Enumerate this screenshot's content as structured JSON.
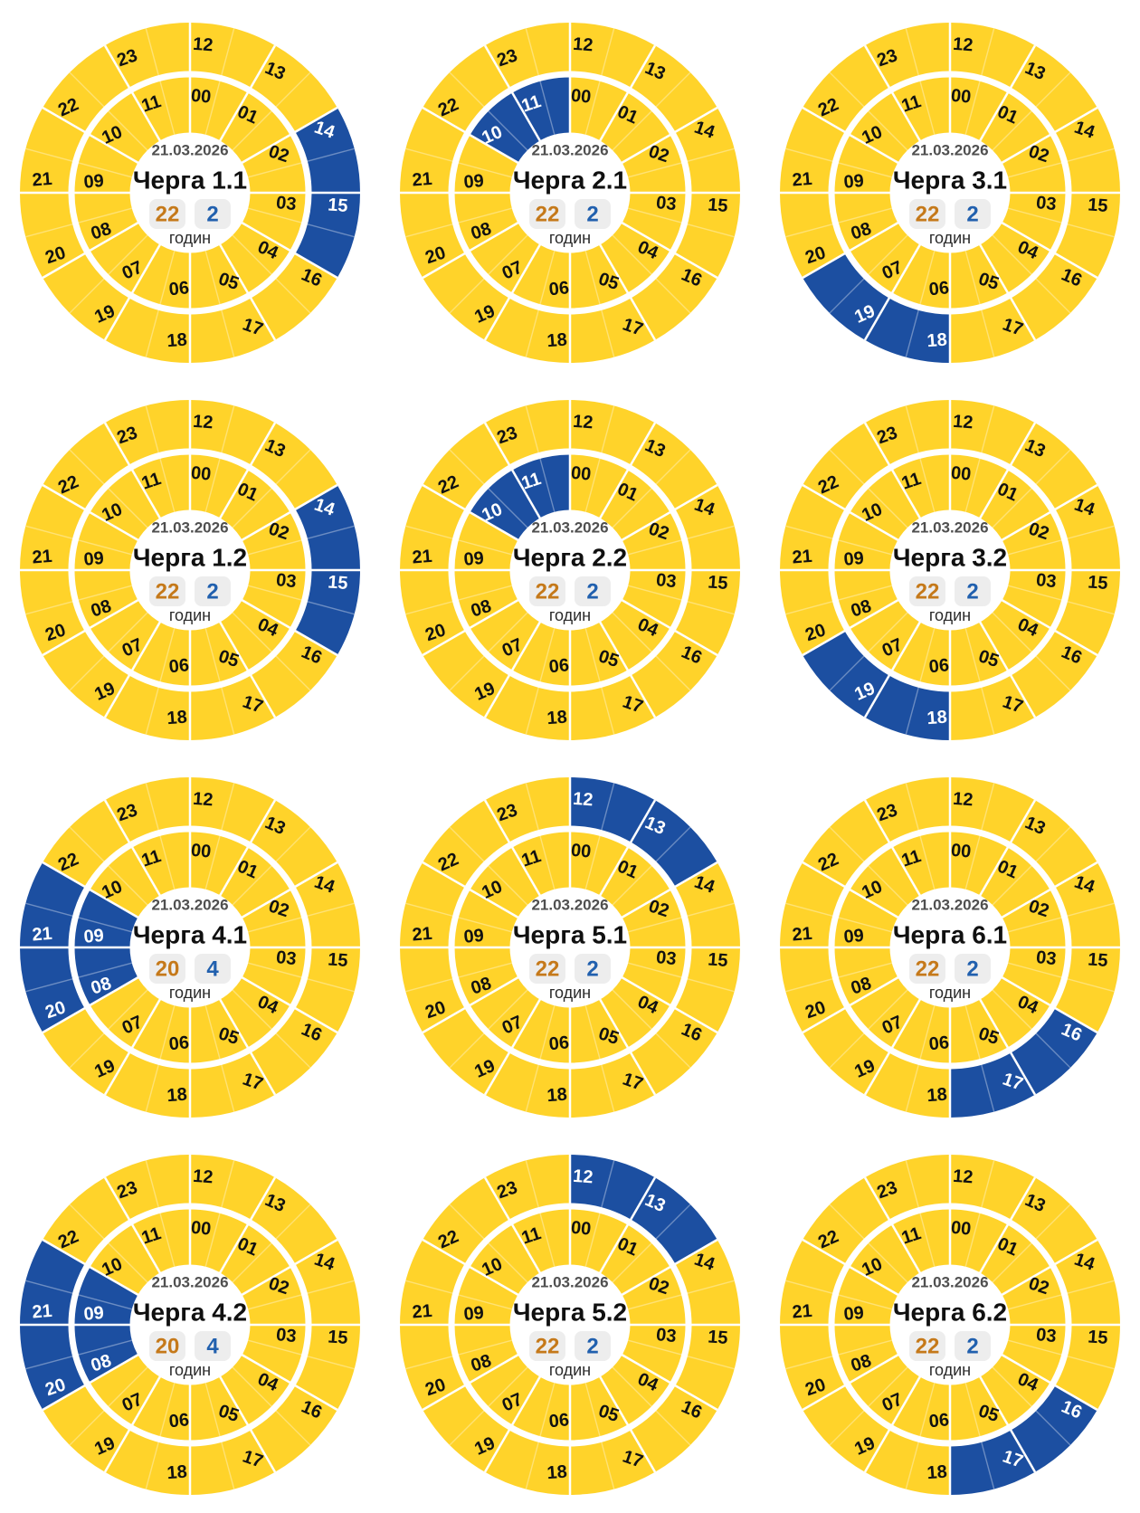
{
  "page": {
    "background": "#ffffff"
  },
  "shared": {
    "date": "21.03.2026",
    "units_label": "годин"
  },
  "clock_config": {
    "inner_ring_hours": "00-11",
    "outer_ring_hours": "12-23",
    "segment_degrees": 30,
    "half_hour_subdivisions": true,
    "label_offset_from_segment_start_deg": 5
  },
  "colors": {
    "power_on": "#FFD32A",
    "power_off": "#1C4FA1",
    "hour_line": "#FFFFFF",
    "half_hour_line": "rgba(255,255,255,0.35)",
    "badge_bg": "#EDEDED",
    "on_count_text": "#C5791A",
    "off_count_text": "#2160AE",
    "date_text": "#4F4F4F",
    "title_text": "#101010",
    "unit_text": "#2B2B2B",
    "label_on_segment": "#111111",
    "label_off_segment": "#FFFFFF"
  },
  "chart_data": [
    {
      "type": "pie",
      "title": "Черга 1.1",
      "date": "21.03.2026",
      "units_label": "годин",
      "hours_on": 22,
      "hours_off": 2,
      "off_hours": [
        14,
        15
      ],
      "off_intervals": [
        "14:00–16:00"
      ]
    },
    {
      "type": "pie",
      "title": "Черга 2.1",
      "date": "21.03.2026",
      "units_label": "годин",
      "hours_on": 22,
      "hours_off": 2,
      "off_hours": [
        10,
        11
      ],
      "off_intervals": [
        "10:00–12:00"
      ]
    },
    {
      "type": "pie",
      "title": "Черга 3.1",
      "date": "21.03.2026",
      "units_label": "годин",
      "hours_on": 22,
      "hours_off": 2,
      "off_hours": [
        18,
        19
      ],
      "off_intervals": [
        "18:00–20:00"
      ]
    },
    {
      "type": "pie",
      "title": "Черга 1.2",
      "date": "21.03.2026",
      "units_label": "годин",
      "hours_on": 22,
      "hours_off": 2,
      "off_hours": [
        14,
        15
      ],
      "off_intervals": [
        "14:00–16:00"
      ]
    },
    {
      "type": "pie",
      "title": "Черга 2.2",
      "date": "21.03.2026",
      "units_label": "годин",
      "hours_on": 22,
      "hours_off": 2,
      "off_hours": [
        10,
        11
      ],
      "off_intervals": [
        "10:00–12:00"
      ]
    },
    {
      "type": "pie",
      "title": "Черга 3.2",
      "date": "21.03.2026",
      "units_label": "годин",
      "hours_on": 22,
      "hours_off": 2,
      "off_hours": [
        18,
        19
      ],
      "off_intervals": [
        "18:00–20:00"
      ]
    },
    {
      "type": "pie",
      "title": "Черга 4.1",
      "date": "21.03.2026",
      "units_label": "годин",
      "hours_on": 20,
      "hours_off": 4,
      "off_hours": [
        8,
        9,
        20,
        21
      ],
      "off_intervals": [
        "08:00–10:00",
        "20:00–22:00"
      ]
    },
    {
      "type": "pie",
      "title": "Черга 5.1",
      "date": "21.03.2026",
      "units_label": "годин",
      "hours_on": 22,
      "hours_off": 2,
      "off_hours": [
        12,
        13
      ],
      "off_intervals": [
        "12:00–14:00"
      ]
    },
    {
      "type": "pie",
      "title": "Черга 6.1",
      "date": "21.03.2026",
      "units_label": "годин",
      "hours_on": 22,
      "hours_off": 2,
      "off_hours": [
        16,
        17
      ],
      "off_intervals": [
        "16:00–18:00"
      ]
    },
    {
      "type": "pie",
      "title": "Черга 4.2",
      "date": "21.03.2026",
      "units_label": "годин",
      "hours_on": 20,
      "hours_off": 4,
      "off_hours": [
        8,
        9,
        20,
        21
      ],
      "off_intervals": [
        "08:00–10:00",
        "20:00–22:00"
      ]
    },
    {
      "type": "pie",
      "title": "Черга 5.2",
      "date": "21.03.2026",
      "units_label": "годин",
      "hours_on": 22,
      "hours_off": 2,
      "off_hours": [
        12,
        13
      ],
      "off_intervals": [
        "12:00–14:00"
      ]
    },
    {
      "type": "pie",
      "title": "Черга 6.2",
      "date": "21.03.2026",
      "units_label": "годин",
      "hours_on": 22,
      "hours_off": 2,
      "off_hours": [
        16,
        17
      ],
      "off_intervals": [
        "16:00–18:00"
      ]
    }
  ]
}
